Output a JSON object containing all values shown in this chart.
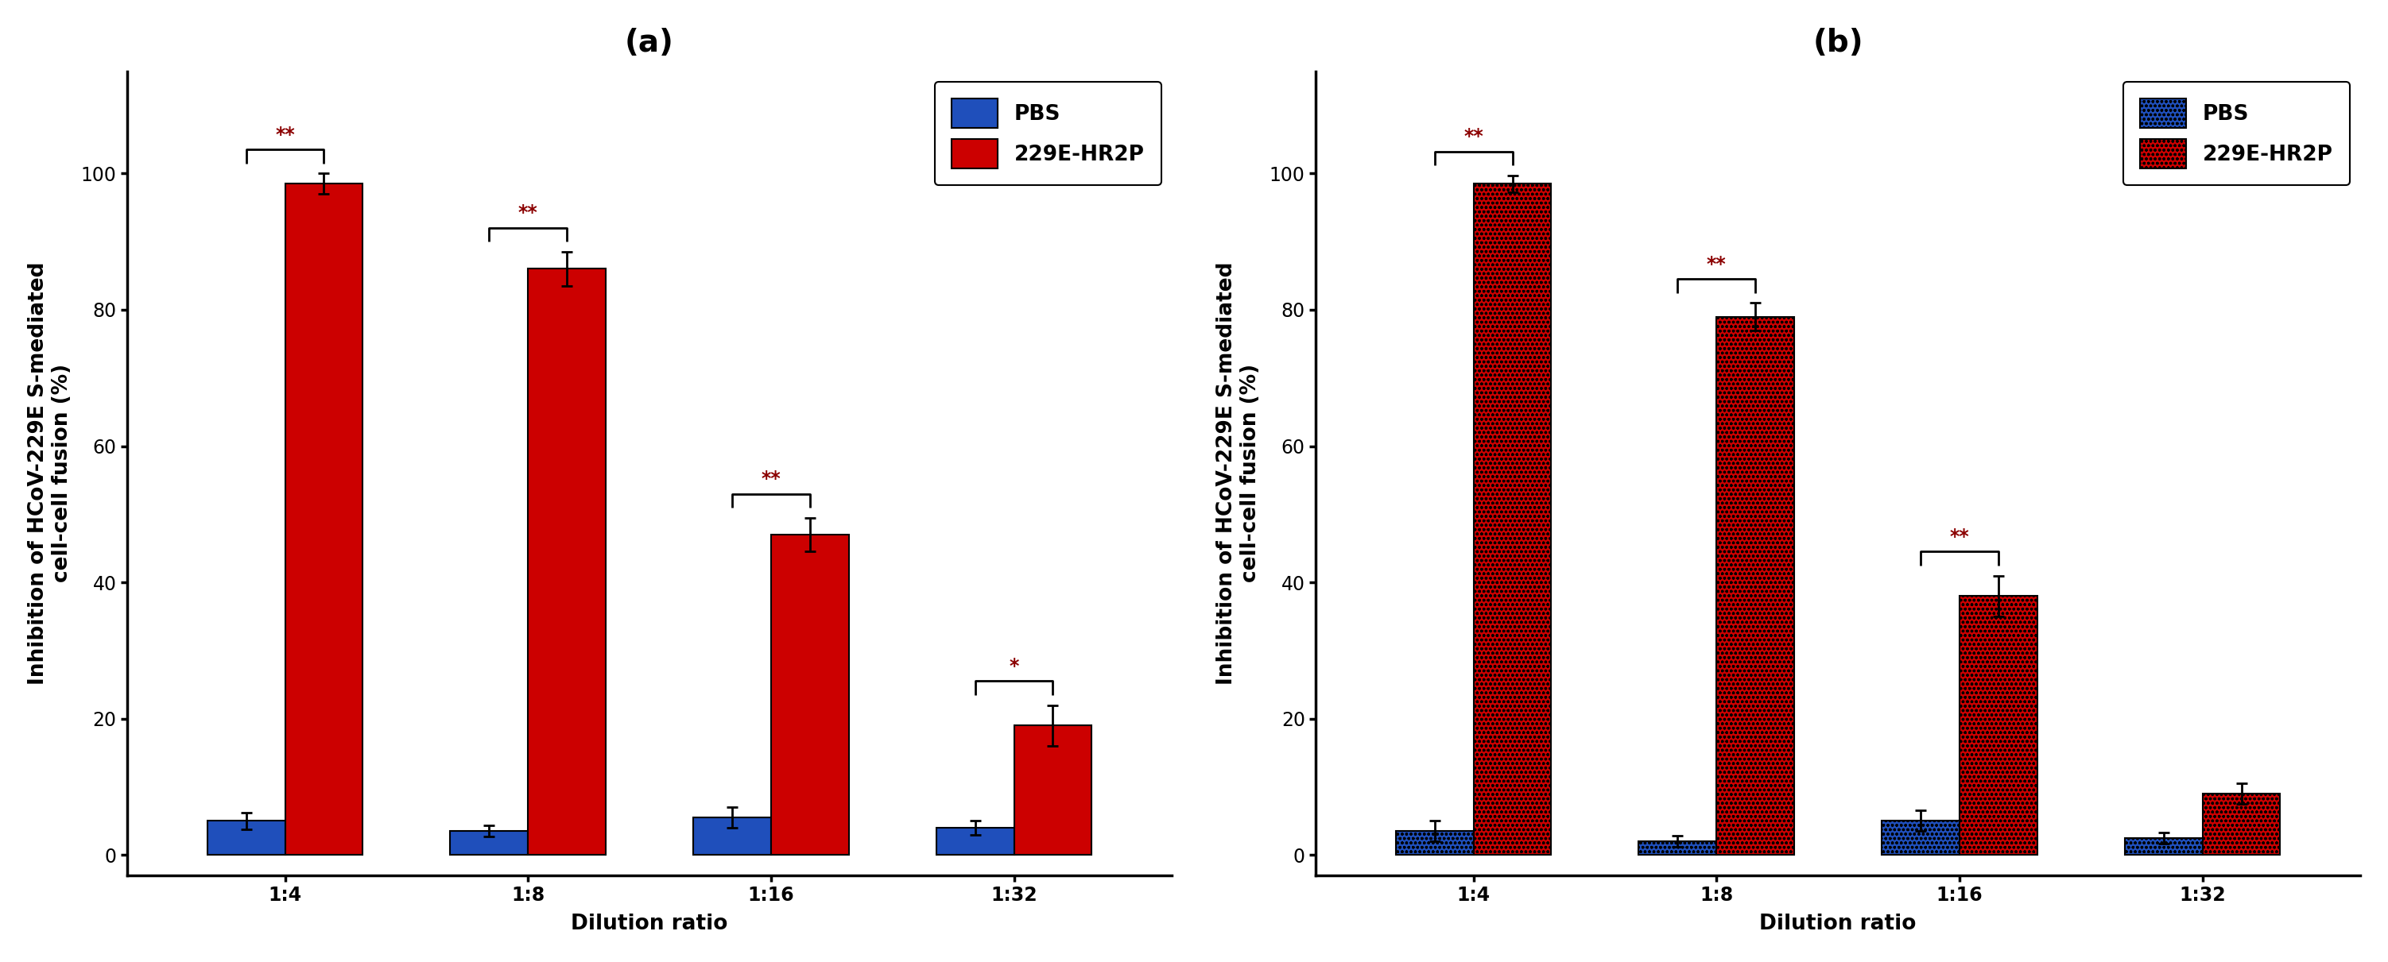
{
  "panel_a": {
    "title": "(a)",
    "categories": [
      "1:4",
      "1:8",
      "1:16",
      "1:32"
    ],
    "pbs_values": [
      5.0,
      3.5,
      5.5,
      4.0
    ],
    "pbs_errors": [
      1.2,
      0.8,
      1.5,
      1.0
    ],
    "hr2p_values": [
      98.5,
      86.0,
      47.0,
      19.0
    ],
    "hr2p_errors": [
      1.5,
      2.5,
      2.5,
      3.0
    ],
    "sig_labels": [
      "**",
      "**",
      "**",
      "*"
    ],
    "pbs_color": "#1F4FBB",
    "hr2p_color": "#CC0000",
    "pbs_hatch": null,
    "hr2p_hatch": null,
    "ylabel": "Inhibition of HCoV-229E S-mediated\ncell-cell fusion (%)",
    "xlabel": "Dilution ratio",
    "ylim": [
      -3,
      115
    ],
    "yticks": [
      0,
      20,
      40,
      60,
      80,
      100
    ],
    "bar_width": 0.32
  },
  "panel_b": {
    "title": "(b)",
    "categories": [
      "1:4",
      "1:8",
      "1:16",
      "1:32"
    ],
    "pbs_values": [
      3.5,
      2.0,
      5.0,
      2.5
    ],
    "pbs_errors": [
      1.5,
      0.8,
      1.5,
      0.8
    ],
    "hr2p_values": [
      98.5,
      79.0,
      38.0,
      9.0
    ],
    "hr2p_errors": [
      1.2,
      2.0,
      3.0,
      1.5
    ],
    "sig_labels": [
      "**",
      "**",
      "**",
      null
    ],
    "pbs_color": "#1F4FBB",
    "hr2p_color": "#CC0000",
    "pbs_hatch": "ooo",
    "hr2p_hatch": "ooo",
    "ylabel": "Inhibition of HCoV-229E S-mediated\ncell-cell fusion (%)",
    "xlabel": "Dilution ratio",
    "ylim": [
      -3,
      115
    ],
    "yticks": [
      0,
      20,
      40,
      60,
      80,
      100
    ],
    "bar_width": 0.32
  },
  "legend_pbs": "PBS",
  "legend_hr2p": "229E-HR2P",
  "background_color": "#FFFFFF",
  "title_fontsize": 28,
  "label_fontsize": 19,
  "tick_fontsize": 17,
  "legend_fontsize": 19,
  "sig_fontsize": 17,
  "sig_color": "#8B0000"
}
